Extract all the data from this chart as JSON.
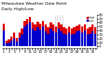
{
  "title": "Milwaukee Weather Dew Point",
  "subtitle": "Daily High/Low",
  "high_values": [
    58,
    15,
    18,
    25,
    35,
    22,
    35,
    45,
    65,
    70,
    75,
    60,
    55,
    62,
    58,
    65,
    55,
    48,
    60,
    55,
    50,
    60,
    55,
    48,
    45,
    50,
    45,
    48,
    52,
    55,
    50,
    55,
    45,
    48,
    55,
    48
  ],
  "low_values": [
    40,
    8,
    10,
    15,
    20,
    12,
    22,
    30,
    50,
    55,
    60,
    45,
    40,
    48,
    42,
    50,
    38,
    32,
    45,
    38,
    35,
    45,
    38,
    32,
    30,
    35,
    30,
    32,
    38,
    40,
    35,
    40,
    30,
    32,
    38,
    32
  ],
  "high_color": "#dd0000",
  "low_color": "#0000cc",
  "bg_color": "#ffffff",
  "ylim": [
    -5,
    80
  ],
  "ytick_vals": [
    0,
    10,
    20,
    30,
    40,
    50,
    60,
    70,
    80
  ],
  "ytick_labels": [
    "0",
    "1",
    "2",
    "3",
    "4",
    "5",
    "6",
    "7",
    "8"
  ],
  "bar_width": 0.85,
  "title_fontsize": 4.5,
  "tick_fontsize": 3.5,
  "legend_fontsize": 3.0,
  "dashed_lines": [
    19.5,
    20.5,
    21.5,
    22.5
  ],
  "x_day_labels": [
    "3",
    "",
    "4",
    "",
    "5",
    "",
    "7",
    "",
    "8",
    "",
    "9",
    "",
    "10",
    "",
    "11",
    "",
    "",
    "13",
    "",
    "14",
    "",
    "15",
    "",
    "16",
    "",
    "17",
    "",
    "",
    "20",
    "",
    "21",
    "",
    "22",
    "",
    "23"
  ]
}
